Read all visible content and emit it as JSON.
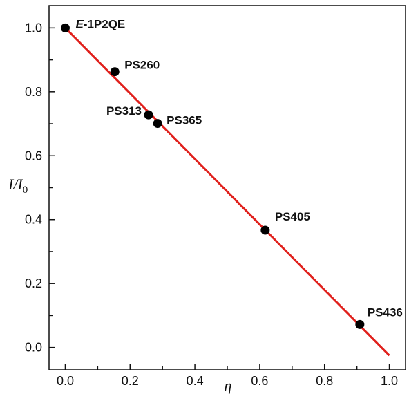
{
  "chart_data": {
    "type": "scatter",
    "title": "",
    "xlabel": "η",
    "ylabel": {
      "base": "I/I",
      "subscript": "0"
    },
    "xlim": [
      -0.05,
      1.05
    ],
    "ylim": [
      -0.07,
      1.07
    ],
    "x_ticks": [
      {
        "value": 0.0,
        "label": "0.0"
      },
      {
        "value": 0.2,
        "label": "0.2"
      },
      {
        "value": 0.4,
        "label": "0.4"
      },
      {
        "value": 0.6,
        "label": "0.6"
      },
      {
        "value": 0.8,
        "label": "0.8"
      },
      {
        "value": 1.0,
        "label": "1.0"
      }
    ],
    "y_ticks": [
      {
        "value": 0.0,
        "label": "0.0"
      },
      {
        "value": 0.2,
        "label": "0.2"
      },
      {
        "value": 0.4,
        "label": "0.4"
      },
      {
        "value": 0.6,
        "label": "0.6"
      },
      {
        "value": 0.8,
        "label": "0.8"
      },
      {
        "value": 1.0,
        "label": "1.0"
      }
    ],
    "grid": false,
    "points": [
      {
        "label_italic": "E",
        "label": "-1P2QE",
        "x": 0.0,
        "y": 1.0
      },
      {
        "label_italic": "",
        "label": "PS260",
        "x": 0.153,
        "y": 0.863
      },
      {
        "label_italic": "",
        "label": "PS313",
        "x": 0.257,
        "y": 0.728
      },
      {
        "label_italic": "",
        "label": "PS365",
        "x": 0.285,
        "y": 0.701
      },
      {
        "label_italic": "",
        "label": "PS405",
        "x": 0.617,
        "y": 0.367
      },
      {
        "label_italic": "",
        "label": "PS436",
        "x": 0.909,
        "y": 0.072
      }
    ],
    "fit_line": {
      "x": [
        0.0,
        1.0
      ],
      "y": [
        1.0,
        -0.025
      ]
    },
    "colors": {
      "points": "#000000",
      "fit_line": "#e0201c",
      "axes": "#111111"
    }
  }
}
